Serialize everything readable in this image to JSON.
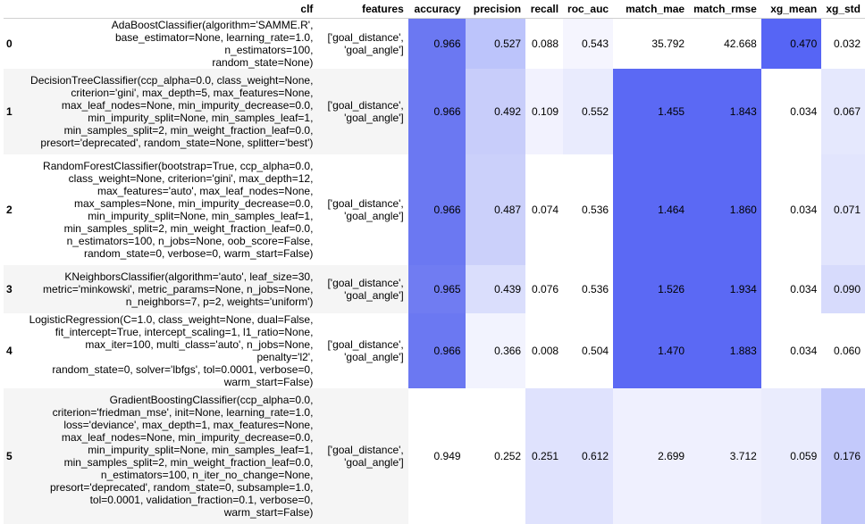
{
  "columns": [
    "",
    "clf",
    "features",
    "accuracy",
    "precision",
    "recall",
    "roc_auc",
    "match_mae",
    "match_rmse",
    "xg_mean",
    "xg_std"
  ],
  "rows": [
    {
      "index": "0",
      "clf": "AdaBoostClassifier(algorithm='SAMME.R',\nbase_estimator=None, learning_rate=1.0, n_estimators=100,\nrandom_state=None)",
      "features": "['goal_distance',\n'goal_angle']",
      "accuracy": "0.966",
      "precision": "0.527",
      "recall": "0.088",
      "roc_auc": "0.543",
      "match_mae": "35.792",
      "match_rmse": "42.668",
      "xg_mean": "0.470",
      "xg_std": "0.032",
      "colors": {
        "accuracy": "#6b78f2",
        "precision": "#bcc4fb",
        "recall": "#ffffff",
        "roc_auc": "#f5f5fe",
        "match_mae": "#ffffff",
        "match_rmse": "#ffffff",
        "xg_mean": "#5665f5",
        "xg_std": "#ffffff"
      }
    },
    {
      "index": "1",
      "clf": "DecisionTreeClassifier(ccp_alpha=0.0, class_weight=None,\ncriterion='gini', max_depth=5, max_features=None,\nmax_leaf_nodes=None, min_impurity_decrease=0.0,\nmin_impurity_split=None, min_samples_leaf=1,\nmin_samples_split=2, min_weight_fraction_leaf=0.0,\npresort='deprecated', random_state=None, splitter='best')",
      "features": "['goal_distance',\n'goal_angle']",
      "accuracy": "0.966",
      "precision": "0.492",
      "recall": "0.109",
      "roc_auc": "0.552",
      "match_mae": "1.455",
      "match_rmse": "1.843",
      "xg_mean": "0.034",
      "xg_std": "0.067",
      "colors": {
        "accuracy": "#6b78f2",
        "precision": "#c8cdfa",
        "recall": "#f2f2fe",
        "roc_auc": "#e9ebfd",
        "match_mae": "#5b69f4",
        "match_rmse": "#5b69f4",
        "xg_mean": "#ffffff",
        "xg_std": "#e5e8fd"
      }
    },
    {
      "index": "2",
      "clf": "RandomForestClassifier(bootstrap=True, ccp_alpha=0.0,\nclass_weight=None, criterion='gini', max_depth=12,\nmax_features='auto', max_leaf_nodes=None,\nmax_samples=None, min_impurity_decrease=0.0,\nmin_impurity_split=None, min_samples_leaf=1,\nmin_samples_split=2, min_weight_fraction_leaf=0.0,\nn_estimators=100, n_jobs=None, oob_score=False,\nrandom_state=0, verbose=0, warm_start=False)",
      "features": "['goal_distance',\n'goal_angle']",
      "accuracy": "0.966",
      "precision": "0.487",
      "recall": "0.074",
      "roc_auc": "0.536",
      "match_mae": "1.464",
      "match_rmse": "1.860",
      "xg_mean": "0.034",
      "xg_std": "0.071",
      "colors": {
        "accuracy": "#6b78f2",
        "precision": "#cbd0fa",
        "recall": "#ffffff",
        "roc_auc": "#ffffff",
        "match_mae": "#5b69f4",
        "match_rmse": "#5b69f4",
        "xg_mean": "#ffffff",
        "xg_std": "#e2e5fd"
      }
    },
    {
      "index": "3",
      "clf": "KNeighborsClassifier(algorithm='auto', leaf_size=30,\nmetric='minkowski', metric_params=None, n_jobs=None,\nn_neighbors=7, p=2, weights='uniform')",
      "features": "['goal_distance',\n'goal_angle']",
      "accuracy": "0.965",
      "precision": "0.439",
      "recall": "0.076",
      "roc_auc": "0.536",
      "match_mae": "1.526",
      "match_rmse": "1.934",
      "xg_mean": "0.034",
      "xg_std": "0.090",
      "colors": {
        "accuracy": "#707cf2",
        "precision": "#dadefc",
        "recall": "#ffffff",
        "roc_auc": "#ffffff",
        "match_mae": "#5b69f4",
        "match_rmse": "#5b69f4",
        "xg_mean": "#ffffff",
        "xg_std": "#d7dbfc"
      }
    },
    {
      "index": "4",
      "clf": "LogisticRegression(C=1.0, class_weight=None, dual=False,\nfit_intercept=True, intercept_scaling=1, l1_ratio=None,\nmax_iter=100, multi_class='auto', n_jobs=None, penalty='l2',\nrandom_state=0, solver='lbfgs', tol=0.0001, verbose=0,\nwarm_start=False)",
      "features": "['goal_distance',\n'goal_angle']",
      "accuracy": "0.966",
      "precision": "0.366",
      "recall": "0.008",
      "roc_auc": "0.504",
      "match_mae": "1.470",
      "match_rmse": "1.883",
      "xg_mean": "0.034",
      "xg_std": "0.060",
      "colors": {
        "accuracy": "#6b78f2",
        "precision": "#f2f3fe",
        "recall": "#ffffff",
        "roc_auc": "#ffffff",
        "match_mae": "#5b69f4",
        "match_rmse": "#5b69f4",
        "xg_mean": "#ffffff",
        "xg_std": "#ffffff"
      }
    },
    {
      "index": "5",
      "clf": "GradientBoostingClassifier(ccp_alpha=0.0,\ncriterion='friedman_mse', init=None, learning_rate=1.0,\nloss='deviance', max_depth=1, max_features=None,\nmax_leaf_nodes=None, min_impurity_decrease=0.0,\nmin_impurity_split=None, min_samples_leaf=1,\nmin_samples_split=2, min_weight_fraction_leaf=0.0,\nn_estimators=100, n_iter_no_change=None,\npresort='deprecated', random_state=0, subsample=1.0,\ntol=0.0001, validation_fraction=0.1, verbose=0,\nwarm_start=False)",
      "features": "['goal_distance',\n'goal_angle']",
      "accuracy": "0.949",
      "precision": "0.252",
      "recall": "0.251",
      "roc_auc": "0.612",
      "match_mae": "2.699",
      "match_rmse": "3.712",
      "xg_mean": "0.059",
      "xg_std": "0.176",
      "colors": {
        "accuracy": "#ffffff",
        "precision": "#ffffff",
        "recall": "#dfe2fd",
        "roc_auc": "#dfe2fd",
        "match_mae": "#eff0fe",
        "match_rmse": "#eff0fe",
        "xg_mean": "#eaecfd",
        "xg_std": "#c3c9fb"
      }
    }
  ]
}
